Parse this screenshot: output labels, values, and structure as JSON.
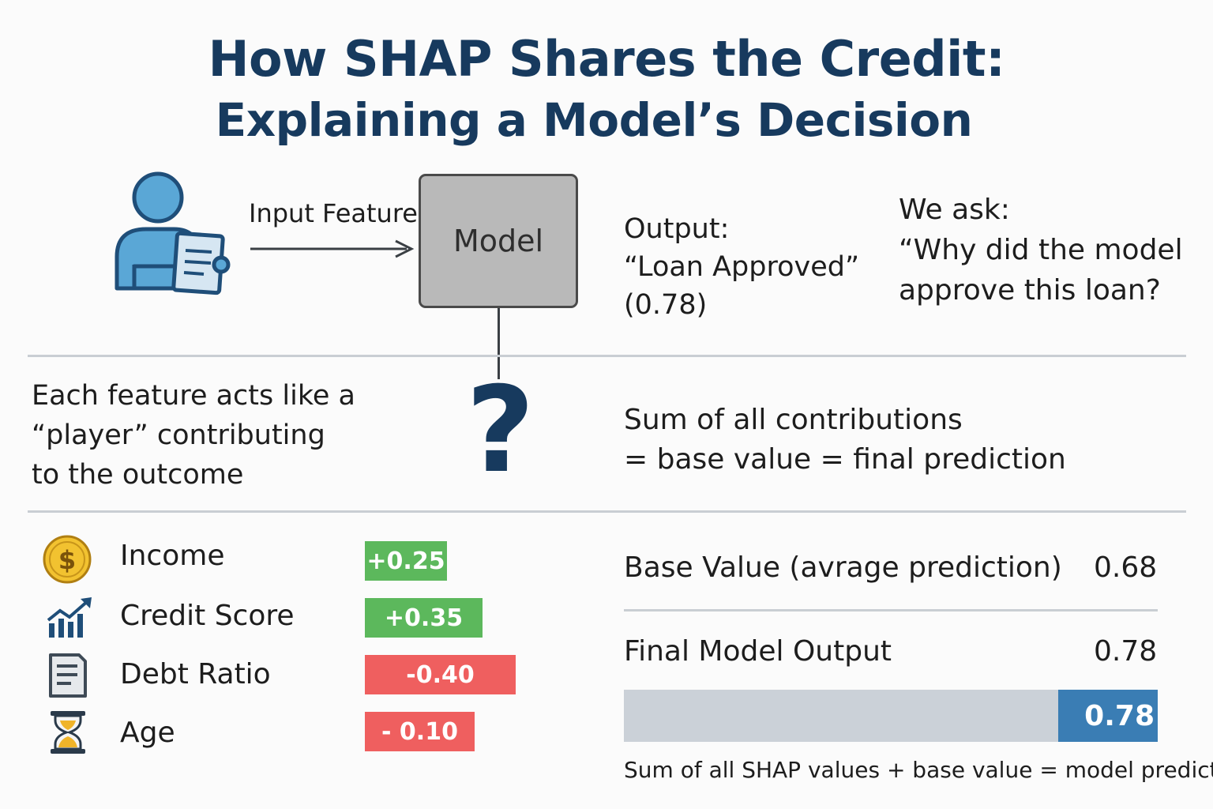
{
  "title": {
    "line1": "How SHAP Shares the Credit:",
    "line2": "Explaining a Model’s Decision"
  },
  "flow": {
    "arrow_label": "Input Features",
    "model_label": "Model",
    "output_lines": [
      "Output:",
      "“Loan Approved”",
      "(0.78)"
    ],
    "question_lines": [
      "We ask:",
      "“Why did the model",
      "approve this loan?"
    ],
    "question_mark": "?"
  },
  "explanation": {
    "player_lines": [
      "Each feature acts like a",
      "“player” contributing",
      "to the outcome"
    ],
    "sum_lines": [
      "Sum of all contributions",
      "= base value = final prediction"
    ]
  },
  "features": [
    {
      "name": "Income",
      "value_label": "+0.25",
      "value": 0.25,
      "icon": "dollar-coin-icon"
    },
    {
      "name": "Credit Score",
      "value_label": "+0.35",
      "value": 0.35,
      "icon": "rising-chart-icon"
    },
    {
      "name": "Debt Ratio",
      "value_label": "-0.40",
      "value": -0.4,
      "icon": "document-icon"
    },
    {
      "name": "Age",
      "value_label": "- 0.10",
      "value": -0.1,
      "icon": "hourglass-icon"
    }
  ],
  "summary": {
    "base_label": "Base Value (avrage prediction)",
    "base_value": "0.68",
    "final_label": "Final Model Output",
    "final_value": "0.78",
    "bar_value_label": "0.78",
    "footer": "Sum of all SHAP values + base value = model prediction"
  },
  "colors": {
    "title": "#173a5e",
    "positive": "#5cb85c",
    "negative": "#ef5f5f",
    "bar_fill": "#3a7db4",
    "bar_track": "#cbd1d8"
  }
}
